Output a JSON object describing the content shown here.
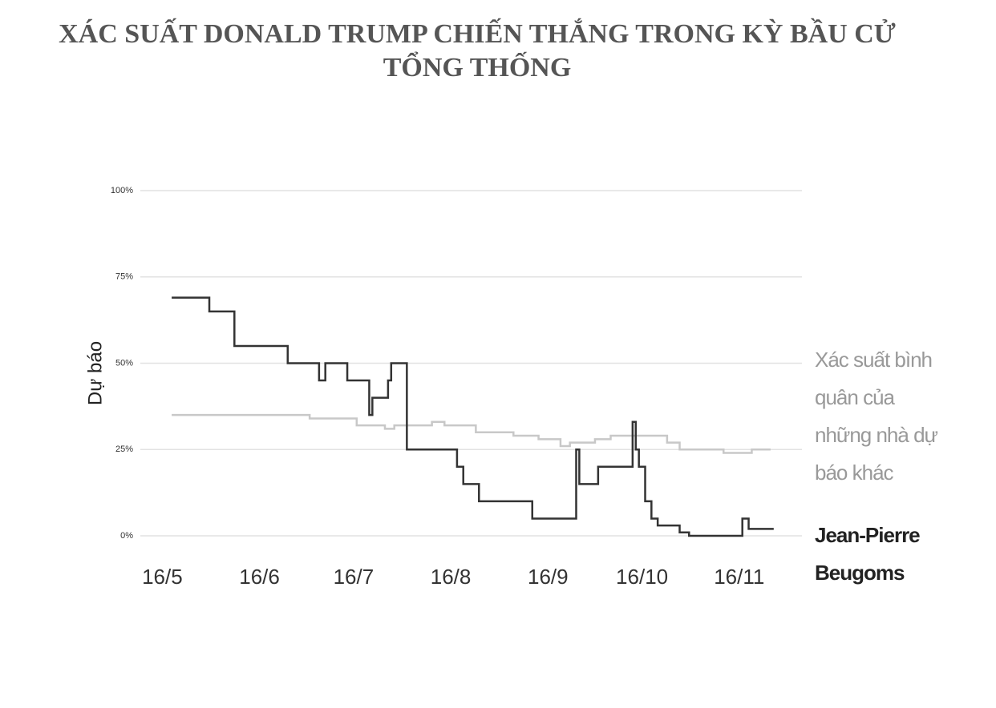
{
  "chart_data": {
    "type": "step",
    "title": "XÁC SUẤT DONALD TRUMP CHIẾN THẮNG TRONG KỲ BẦU CỬ TỔNG THỐNG",
    "y_label": "Dự báo",
    "xlim": [
      -7,
      204
    ],
    "xticks": [
      {
        "value": 0,
        "label": "16/5"
      },
      {
        "value": 31,
        "label": "16/6"
      },
      {
        "value": 61,
        "label": "16/7"
      },
      {
        "value": 92,
        "label": "16/8"
      },
      {
        "value": 123,
        "label": "16/9"
      },
      {
        "value": 153,
        "label": "16/10"
      },
      {
        "value": 184,
        "label": "16/11"
      }
    ],
    "ylim": [
      0,
      100
    ],
    "yticks": [
      {
        "value": 0,
        "label": "0%"
      },
      {
        "value": 25,
        "label": "25%"
      },
      {
        "value": 50,
        "label": "50%"
      },
      {
        "value": 75,
        "label": "75%"
      },
      {
        "value": 100,
        "label": "100%"
      }
    ],
    "grid": true,
    "series": [
      {
        "name": "Xác suất bình quân của những nhà dự báo khác",
        "color": "#c8c8c8",
        "x": [
          3,
          47,
          62,
          71,
          74,
          86,
          90,
          100,
          112,
          120,
          127,
          130,
          138,
          143,
          161,
          165,
          179,
          188,
          194
        ],
        "values": [
          35,
          34,
          32,
          31,
          32,
          33,
          32,
          30,
          29,
          28,
          26,
          27,
          28,
          29,
          27,
          25,
          24,
          25,
          25
        ]
      },
      {
        "name": "Jean-Pierre Beugoms",
        "color": "#333333",
        "x": [
          3,
          15,
          23,
          40,
          50,
          52,
          59,
          66,
          67,
          72,
          73,
          78,
          94,
          96,
          101,
          118,
          132,
          133,
          139,
          150,
          151,
          152,
          154,
          156,
          158,
          165,
          168,
          185,
          187,
          195
        ],
        "values": [
          69,
          65,
          55,
          50,
          45,
          50,
          45,
          35,
          40,
          45,
          50,
          25,
          20,
          15,
          10,
          5,
          25,
          15,
          20,
          33,
          25,
          20,
          10,
          5,
          3,
          1,
          0,
          5,
          2,
          2
        ]
      }
    ]
  }
}
